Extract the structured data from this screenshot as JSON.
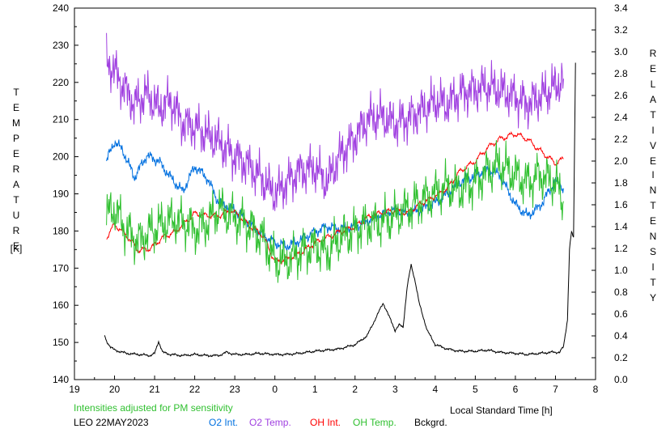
{
  "chart_data": {
    "type": "line",
    "xlabel": "Local Standard Time [h]",
    "x_ticks": [
      "19",
      "20",
      "21",
      "22",
      "23",
      "0",
      "1",
      "2",
      "3",
      "4",
      "5",
      "6",
      "7",
      "8"
    ],
    "xlim": [
      19,
      32
    ],
    "ylabel_left_letters": [
      "T",
      "E",
      "M",
      "P",
      "E",
      "R",
      "A",
      "T",
      "U",
      "R",
      "E"
    ],
    "ylabel_left_unit": "[K]",
    "ylim_left": [
      140,
      240
    ],
    "y_ticks_left": [
      "140",
      "150",
      "160",
      "170",
      "180",
      "190",
      "200",
      "210",
      "220",
      "230",
      "240"
    ],
    "ylabel_right_word1": [
      "R",
      "E",
      "L",
      "A",
      "T",
      "I",
      "V",
      "E"
    ],
    "ylabel_right_word2": [
      "I",
      "N",
      "T",
      "E",
      "N",
      "S",
      "I",
      "T",
      "Y"
    ],
    "ylim_right": [
      0,
      3.4
    ],
    "y_ticks_right": [
      "0.0",
      "0.2",
      "0.4",
      "0.6",
      "0.8",
      "1.0",
      "1.2",
      "1.4",
      "1.6",
      "1.8",
      "2.0",
      "2.2",
      "2.4",
      "2.6",
      "2.8",
      "3.0",
      "3.2",
      "3.4"
    ],
    "note": "Intensities adjusted for PM sensitivity",
    "station": "LEO 22MAY2023",
    "colors": {
      "o2int": "#0070e0",
      "o2temp": "#a040e0",
      "ohint": "#ff0000",
      "ohtemp": "#30c030",
      "bckgrd": "#000000",
      "note": "#30c030"
    },
    "series": [
      {
        "name": "O2 Int.",
        "axis": "right",
        "x": [
          19.8,
          20.0,
          20.2,
          20.5,
          20.8,
          21.1,
          21.4,
          21.7,
          22.0,
          22.3,
          22.6,
          23.0,
          23.3,
          23.6,
          24.0,
          24.3,
          24.6,
          25.0,
          25.3,
          25.6,
          26.0,
          26.3,
          26.6,
          27.0,
          27.3,
          27.6,
          28.0,
          28.3,
          28.6,
          29.0,
          29.3,
          29.6,
          30.0,
          30.3,
          30.6,
          31.0,
          31.2
        ],
        "values": [
          2.0,
          2.18,
          2.1,
          1.85,
          2.05,
          2.0,
          1.85,
          1.72,
          1.95,
          1.85,
          1.62,
          1.55,
          1.45,
          1.35,
          1.25,
          1.22,
          1.27,
          1.35,
          1.4,
          1.38,
          1.4,
          1.45,
          1.5,
          1.55,
          1.52,
          1.55,
          1.62,
          1.7,
          1.8,
          1.87,
          1.92,
          1.88,
          1.6,
          1.5,
          1.58,
          1.82,
          1.75
        ]
      },
      {
        "name": "O2 Temp.",
        "axis": "left",
        "x": [
          19.8,
          20.0,
          20.2,
          20.5,
          20.8,
          21.1,
          21.4,
          21.7,
          22.0,
          22.3,
          22.6,
          23.0,
          23.3,
          23.6,
          24.0,
          24.3,
          24.6,
          25.0,
          25.3,
          25.6,
          26.0,
          26.3,
          26.6,
          27.0,
          27.3,
          27.6,
          28.0,
          28.3,
          28.6,
          29.0,
          29.3,
          29.6,
          30.0,
          30.3,
          30.6,
          31.0,
          31.2
        ],
        "values": [
          226,
          223,
          219,
          214,
          217,
          213,
          215,
          209,
          208,
          206,
          204,
          200,
          198,
          195,
          190,
          193,
          196,
          197,
          193,
          200,
          205,
          210,
          211,
          209,
          210,
          212,
          215,
          214,
          217,
          218,
          219,
          218,
          216,
          214,
          216,
          219,
          221
        ]
      },
      {
        "name": "OH Int.",
        "axis": "right",
        "x": [
          19.8,
          20.0,
          20.3,
          20.6,
          20.9,
          21.2,
          21.5,
          21.8,
          22.0,
          22.3,
          22.6,
          22.9,
          23.1,
          23.4,
          23.7,
          24.0,
          24.3,
          24.6,
          25.0,
          25.3,
          25.6,
          26.0,
          26.3,
          26.6,
          27.0,
          27.3,
          27.6,
          28.0,
          28.3,
          28.6,
          29.0,
          29.3,
          29.6,
          30.0,
          30.3,
          30.6,
          31.0,
          31.2
        ],
        "values": [
          1.3,
          1.42,
          1.32,
          1.18,
          1.2,
          1.3,
          1.35,
          1.45,
          1.52,
          1.5,
          1.5,
          1.55,
          1.5,
          1.4,
          1.32,
          1.08,
          1.1,
          1.15,
          1.25,
          1.3,
          1.35,
          1.4,
          1.48,
          1.52,
          1.55,
          1.52,
          1.6,
          1.68,
          1.75,
          1.9,
          2.0,
          2.12,
          2.2,
          2.25,
          2.2,
          2.1,
          1.98,
          2.02
        ]
      },
      {
        "name": "OH Temp.",
        "axis": "left",
        "x": [
          19.8,
          20.0,
          20.3,
          20.6,
          20.9,
          21.2,
          21.5,
          21.8,
          22.0,
          22.3,
          22.6,
          22.9,
          23.1,
          23.4,
          23.7,
          24.0,
          24.3,
          24.6,
          25.0,
          25.3,
          25.6,
          26.0,
          26.3,
          26.6,
          27.0,
          27.3,
          27.6,
          28.0,
          28.3,
          28.6,
          29.0,
          29.3,
          29.6,
          30.0,
          30.3,
          30.6,
          31.0,
          31.2
        ],
        "values": [
          184,
          186,
          180,
          177,
          180,
          182,
          183,
          182,
          180,
          182,
          186,
          184,
          183,
          181,
          178,
          172,
          172,
          174,
          176,
          174,
          178,
          180,
          182,
          182,
          184,
          186,
          188,
          190,
          192,
          191,
          193,
          196,
          198,
          195,
          193,
          195,
          193,
          188
        ]
      },
      {
        "name": "Bckgrd.",
        "axis": "right",
        "x": [
          19.75,
          19.8,
          19.9,
          20.0,
          20.3,
          20.6,
          20.9,
          21.0,
          21.1,
          21.2,
          21.4,
          21.7,
          22.0,
          22.3,
          22.6,
          22.8,
          23.0,
          23.3,
          23.6,
          24.0,
          24.3,
          24.6,
          25.0,
          25.3,
          25.6,
          25.8,
          26.0,
          26.3,
          26.5,
          26.7,
          26.8,
          27.0,
          27.1,
          27.2,
          27.3,
          27.4,
          27.5,
          27.6,
          27.8,
          28.0,
          28.3,
          28.6,
          29.0,
          29.3,
          29.6,
          30.0,
          30.3,
          30.6,
          30.9,
          31.1,
          31.2,
          31.3,
          31.35,
          31.4,
          31.45,
          31.5
        ],
        "values": [
          0.4,
          0.35,
          0.3,
          0.27,
          0.24,
          0.23,
          0.22,
          0.24,
          0.35,
          0.25,
          0.23,
          0.22,
          0.23,
          0.22,
          0.22,
          0.25,
          0.23,
          0.23,
          0.24,
          0.23,
          0.23,
          0.24,
          0.26,
          0.27,
          0.28,
          0.3,
          0.32,
          0.4,
          0.55,
          0.7,
          0.62,
          0.45,
          0.5,
          0.48,
          0.85,
          1.05,
          0.9,
          0.7,
          0.45,
          0.32,
          0.28,
          0.26,
          0.26,
          0.27,
          0.25,
          0.24,
          0.23,
          0.24,
          0.25,
          0.25,
          0.3,
          0.55,
          1.2,
          1.35,
          1.3,
          2.9
        ]
      }
    ]
  }
}
